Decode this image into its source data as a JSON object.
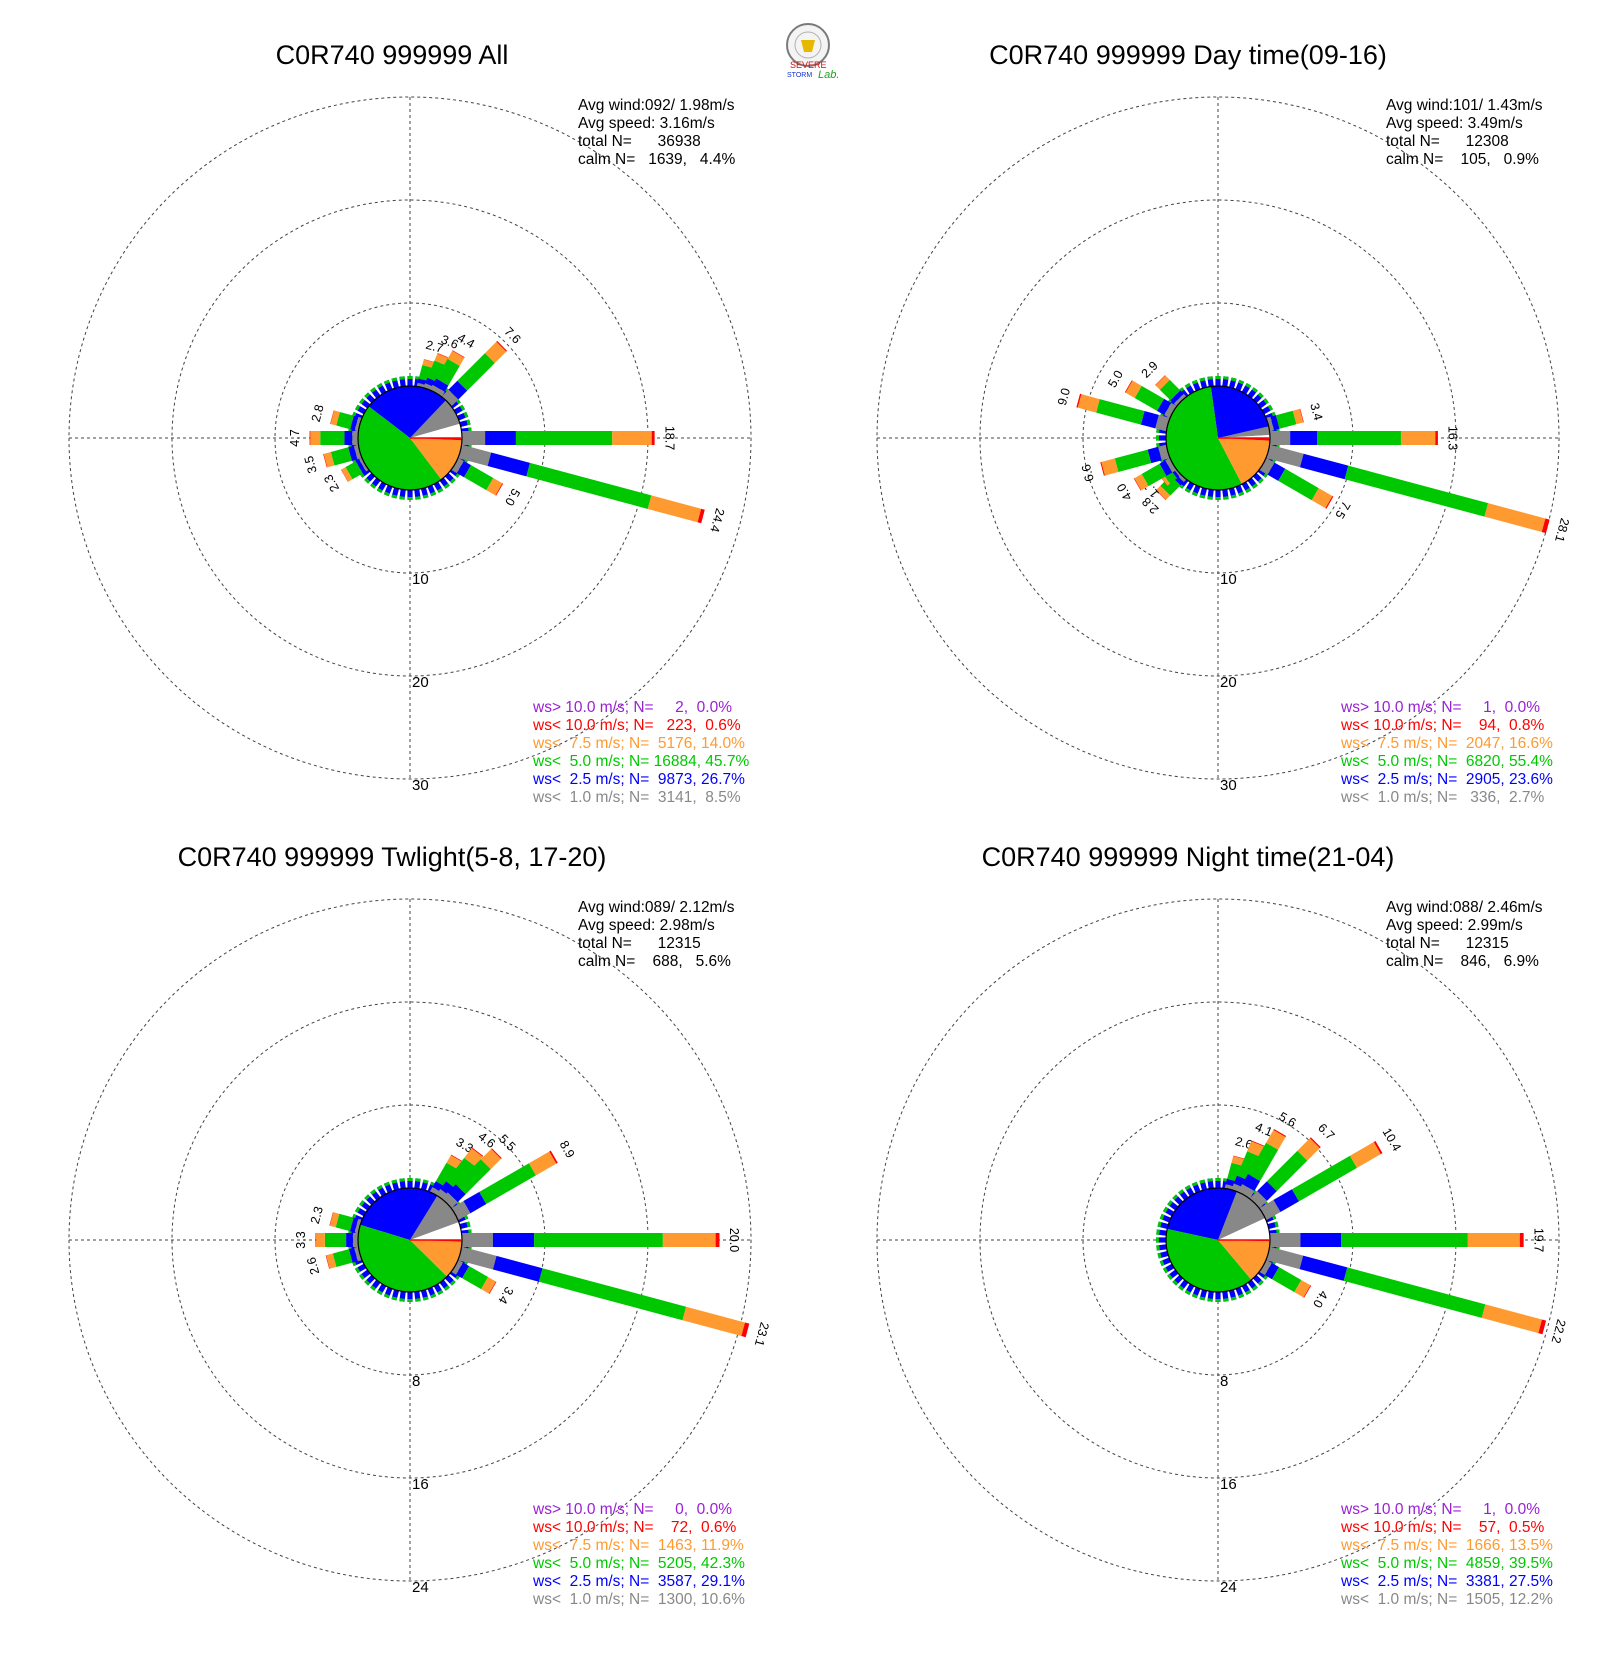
{
  "colors": {
    "ws_gt10": "#9a1fd6",
    "ws_lt10": "#ff0000",
    "ws_lt7_5": "#ff9a30",
    "ws_lt5": "#00c800",
    "ws_lt2_5": "#0000ff",
    "ws_lt1": "#888888",
    "calm": "#ffffff"
  },
  "logo": {
    "text_a": "SEVERE",
    "text_b": "STORM",
    "text_c": "Lab."
  },
  "chart_data": [
    {
      "type": "windrose",
      "title": "C0R740 999999 All",
      "stats": {
        "avg_wind": "Avg wind:092/ 1.98m/s",
        "avg_speed": "Avg speed: 3.16m/s",
        "total": "total N=      36938",
        "calm": "calm N=   1639,   4.4%"
      },
      "ring_labels": [
        "10",
        "20",
        "30"
      ],
      "rmax": 30,
      "pie": [
        {
          "bin": "ws_lt1",
          "pct": 8.5
        },
        {
          "bin": "ws_lt2_5",
          "pct": 26.7
        },
        {
          "bin": "ws_lt5",
          "pct": 45.7
        },
        {
          "bin": "ws_lt7_5",
          "pct": 14.0
        },
        {
          "bin": "ws_lt10",
          "pct": 0.6
        },
        {
          "bin": "calm",
          "pct": 4.4
        }
      ],
      "bars": [
        {
          "dir": 15,
          "value": 2.7
        },
        {
          "dir": 22.5,
          "value": 3.6
        },
        {
          "dir": 30,
          "value": 4.4
        },
        {
          "dir": 45,
          "value": 7.6
        },
        {
          "dir": 90,
          "value": 18.7
        },
        {
          "dir": 105,
          "value": 24.4
        },
        {
          "dir": 120,
          "value": 5.0
        },
        {
          "dir": 240,
          "value": 2.3
        },
        {
          "dir": 255,
          "value": 3.5
        },
        {
          "dir": 270,
          "value": 4.7
        },
        {
          "dir": 285,
          "value": 2.8
        }
      ],
      "legend": [
        {
          "bin": "ws_gt10",
          "text": "ws> 10.0 m/s; N=     2,  0.0%"
        },
        {
          "bin": "ws_lt10",
          "text": "ws< 10.0 m/s; N=   223,  0.6%"
        },
        {
          "bin": "ws_lt7_5",
          "text": "ws<  7.5 m/s; N=  5176, 14.0%"
        },
        {
          "bin": "ws_lt5",
          "text": "ws<  5.0 m/s; N= 16884, 45.7%"
        },
        {
          "bin": "ws_lt2_5",
          "text": "ws<  2.5 m/s; N=  9873, 26.7%"
        },
        {
          "bin": "ws_lt1",
          "text": "ws<  1.0 m/s; N=  3141,  8.5%"
        }
      ]
    },
    {
      "type": "windrose",
      "title": "C0R740 999999 Day time(09-16)",
      "stats": {
        "avg_wind": "Avg wind:101/ 1.43m/s",
        "avg_speed": "Avg speed: 3.49m/s",
        "total": "total N=      12308",
        "calm": "calm N=    105,   0.9%"
      },
      "ring_labels": [
        "10",
        "20",
        "30"
      ],
      "rmax": 30,
      "pie": [
        {
          "bin": "ws_lt1",
          "pct": 2.7
        },
        {
          "bin": "ws_lt2_5",
          "pct": 23.6
        },
        {
          "bin": "ws_lt5",
          "pct": 55.4
        },
        {
          "bin": "ws_lt7_5",
          "pct": 16.6
        },
        {
          "bin": "ws_lt10",
          "pct": 0.8
        },
        {
          "bin": "calm",
          "pct": 0.9
        }
      ],
      "bars": [
        {
          "dir": 75,
          "value": 3.4
        },
        {
          "dir": 90,
          "value": 16.3
        },
        {
          "dir": 105,
          "value": 28.1
        },
        {
          "dir": 120,
          "value": 7.5
        },
        {
          "dir": 225,
          "value": 2.8
        },
        {
          "dir": 232.5,
          "value": 1.7
        },
        {
          "dir": 240,
          "value": 4.0
        },
        {
          "dir": 255,
          "value": 6.6
        },
        {
          "dir": 285,
          "value": 9.0
        },
        {
          "dir": 300,
          "value": 5.0
        },
        {
          "dir": 315,
          "value": 2.9
        }
      ],
      "legend": [
        {
          "bin": "ws_gt10",
          "text": "ws> 10.0 m/s; N=     1,  0.0%"
        },
        {
          "bin": "ws_lt10",
          "text": "ws< 10.0 m/s; N=    94,  0.8%"
        },
        {
          "bin": "ws_lt7_5",
          "text": "ws<  7.5 m/s; N=  2047, 16.6%"
        },
        {
          "bin": "ws_lt5",
          "text": "ws<  5.0 m/s; N=  6820, 55.4%"
        },
        {
          "bin": "ws_lt2_5",
          "text": "ws<  2.5 m/s; N=  2905, 23.6%"
        },
        {
          "bin": "ws_lt1",
          "text": "ws<  1.0 m/s; N=   336,  2.7%"
        }
      ]
    },
    {
      "type": "windrose",
      "title": "C0R740 999999 Twlight(5-8, 17-20)",
      "stats": {
        "avg_wind": "Avg wind:089/ 2.12m/s",
        "avg_speed": "Avg speed: 2.98m/s",
        "total": "total N=      12315",
        "calm": "calm N=    688,   5.6%"
      },
      "ring_labels": [
        "8",
        "16",
        "24"
      ],
      "rmax": 24,
      "pie": [
        {
          "bin": "ws_lt1",
          "pct": 10.6
        },
        {
          "bin": "ws_lt2_5",
          "pct": 29.1
        },
        {
          "bin": "ws_lt5",
          "pct": 42.3
        },
        {
          "bin": "ws_lt7_5",
          "pct": 11.9
        },
        {
          "bin": "ws_lt10",
          "pct": 0.6
        },
        {
          "bin": "calm",
          "pct": 5.6
        }
      ],
      "bars": [
        {
          "dir": 30,
          "value": 3.3
        },
        {
          "dir": 37.5,
          "value": 4.6
        },
        {
          "dir": 45,
          "value": 5.5
        },
        {
          "dir": 60,
          "value": 8.9
        },
        {
          "dir": 90,
          "value": 20.0
        },
        {
          "dir": 105,
          "value": 23.1
        },
        {
          "dir": 120,
          "value": 3.4
        },
        {
          "dir": 255,
          "value": 2.6
        },
        {
          "dir": 270,
          "value": 3.3
        },
        {
          "dir": 285,
          "value": 2.3
        }
      ],
      "legend": [
        {
          "bin": "ws_gt10",
          "text": "ws> 10.0 m/s; N=     0,  0.0%"
        },
        {
          "bin": "ws_lt10",
          "text": "ws< 10.0 m/s; N=    72,  0.6%"
        },
        {
          "bin": "ws_lt7_5",
          "text": "ws<  7.5 m/s; N=  1463, 11.9%"
        },
        {
          "bin": "ws_lt5",
          "text": "ws<  5.0 m/s; N=  5205, 42.3%"
        },
        {
          "bin": "ws_lt2_5",
          "text": "ws<  2.5 m/s; N=  3587, 29.1%"
        },
        {
          "bin": "ws_lt1",
          "text": "ws<  1.0 m/s; N=  1300, 10.6%"
        }
      ]
    },
    {
      "type": "windrose",
      "title": "C0R740 999999 Night time(21-04)",
      "stats": {
        "avg_wind": "Avg wind:088/ 2.46m/s",
        "avg_speed": "Avg speed: 2.99m/s",
        "total": "total N=      12315",
        "calm": "calm N=    846,   6.9%"
      },
      "ring_labels": [
        "8",
        "16",
        "24"
      ],
      "rmax": 24,
      "pie": [
        {
          "bin": "ws_lt1",
          "pct": 12.2
        },
        {
          "bin": "ws_lt2_5",
          "pct": 27.5
        },
        {
          "bin": "ws_lt5",
          "pct": 39.5
        },
        {
          "bin": "ws_lt7_5",
          "pct": 13.5
        },
        {
          "bin": "ws_lt10",
          "pct": 0.5
        },
        {
          "bin": "calm",
          "pct": 6.9
        }
      ],
      "bars": [
        {
          "dir": 15,
          "value": 2.6
        },
        {
          "dir": 22.5,
          "value": 4.1
        },
        {
          "dir": 30,
          "value": 5.6
        },
        {
          "dir": 45,
          "value": 6.7
        },
        {
          "dir": 60,
          "value": 10.4
        },
        {
          "dir": 90,
          "value": 19.7
        },
        {
          "dir": 105,
          "value": 22.2
        },
        {
          "dir": 120,
          "value": 4.0
        }
      ],
      "legend": [
        {
          "bin": "ws_gt10",
          "text": "ws> 10.0 m/s; N=     1,  0.0%"
        },
        {
          "bin": "ws_lt10",
          "text": "ws< 10.0 m/s; N=    57,  0.5%"
        },
        {
          "bin": "ws_lt7_5",
          "text": "ws<  7.5 m/s; N=  1666, 13.5%"
        },
        {
          "bin": "ws_lt5",
          "text": "ws<  5.0 m/s; N=  4859, 39.5%"
        },
        {
          "bin": "ws_lt2_5",
          "text": "ws<  2.5 m/s; N=  3381, 27.5%"
        },
        {
          "bin": "ws_lt1",
          "text": "ws<  1.0 m/s; N=  1505, 12.2%"
        }
      ]
    }
  ]
}
